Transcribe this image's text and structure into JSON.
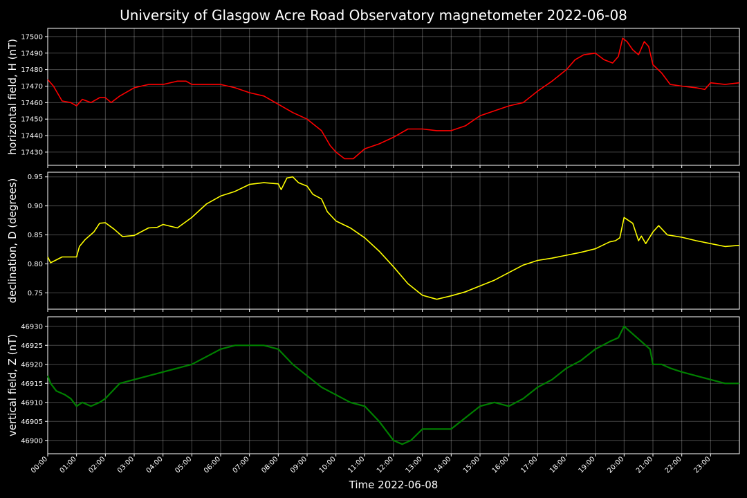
{
  "figure": {
    "title": "University of Glasgow Acre Road Observatory magnetometer 2022-06-08",
    "xlabel": "Time 2022-06-08",
    "x_tick_labels": [
      "00:00",
      "01:00",
      "02:00",
      "03:00",
      "04:00",
      "05:00",
      "06:00",
      "07:00",
      "08:00",
      "09:00",
      "10:00",
      "11:00",
      "12:00",
      "13:00",
      "14:00",
      "15:00",
      "16:00",
      "17:00",
      "18:00",
      "19:00",
      "20:00",
      "21:00",
      "22:00",
      "23:00"
    ],
    "background_color": "#000000",
    "grid": true
  },
  "chart_data": [
    {
      "type": "line",
      "ylabel": "horizontal field, H (nT)",
      "color": "#ff0000",
      "xlim": [
        0,
        24
      ],
      "ylim": [
        17422,
        17505
      ],
      "y_ticks": [
        17430,
        17440,
        17450,
        17460,
        17470,
        17480,
        17490,
        17500
      ],
      "x_hours": [
        0,
        0.2,
        0.5,
        0.8,
        1.0,
        1.2,
        1.5,
        1.8,
        2.0,
        2.2,
        2.5,
        3.0,
        3.5,
        4.0,
        4.5,
        4.8,
        5.0,
        5.5,
        6.0,
        6.5,
        7.0,
        7.5,
        8.0,
        8.5,
        9.0,
        9.5,
        9.8,
        10.0,
        10.3,
        10.6,
        11.0,
        11.5,
        12.0,
        12.5,
        13.0,
        13.5,
        14.0,
        14.5,
        15.0,
        15.5,
        16.0,
        16.5,
        17.0,
        17.5,
        18.0,
        18.3,
        18.6,
        19.0,
        19.3,
        19.6,
        19.8,
        19.95,
        20.1,
        20.3,
        20.5,
        20.7,
        20.85,
        21.0,
        21.3,
        21.6,
        22.0,
        22.5,
        22.8,
        23.0,
        23.5,
        24.0
      ],
      "values": [
        17474,
        17470,
        17461,
        17460,
        17458,
        17462,
        17460,
        17463,
        17463,
        17460,
        17464,
        17469,
        17471,
        17471,
        17473,
        17473,
        17471,
        17471,
        17471,
        17469,
        17466,
        17464,
        17459,
        17454,
        17450,
        17443,
        17434,
        17430,
        17426,
        17426,
        17432,
        17435,
        17439,
        17444,
        17444,
        17443,
        17443,
        17446,
        17452,
        17455,
        17458,
        17460,
        17467,
        17473,
        17480,
        17486,
        17489,
        17490,
        17486,
        17484,
        17488,
        17499,
        17497,
        17492,
        17489,
        17497,
        17494,
        17483,
        17478,
        17471,
        17470,
        17469,
        17468,
        17472,
        17471,
        17472
      ]
    },
    {
      "type": "line",
      "ylabel": "declination, D (degrees)",
      "color": "#ffff00",
      "xlim": [
        0,
        24
      ],
      "ylim": [
        0.722,
        0.958
      ],
      "y_ticks": [
        0.75,
        0.8,
        0.85,
        0.9,
        0.95
      ],
      "x_hours": [
        0,
        0.1,
        0.5,
        1.0,
        1.1,
        1.3,
        1.6,
        1.8,
        2.0,
        2.3,
        2.6,
        3.0,
        3.5,
        3.8,
        4.0,
        4.5,
        5.0,
        5.5,
        6.0,
        6.5,
        7.0,
        7.5,
        8.0,
        8.1,
        8.3,
        8.5,
        8.7,
        9.0,
        9.2,
        9.5,
        9.7,
        10.0,
        10.5,
        11.0,
        11.5,
        12.0,
        12.5,
        13.0,
        13.5,
        14.0,
        14.5,
        15.0,
        15.5,
        16.0,
        16.5,
        17.0,
        17.5,
        18.0,
        18.5,
        19.0,
        19.5,
        19.7,
        19.85,
        20.0,
        20.3,
        20.5,
        20.6,
        20.75,
        21.0,
        21.2,
        21.5,
        22.0,
        22.5,
        23.0,
        23.5,
        24.0
      ],
      "values": [
        0.812,
        0.802,
        0.812,
        0.812,
        0.83,
        0.842,
        0.855,
        0.87,
        0.871,
        0.86,
        0.847,
        0.849,
        0.862,
        0.863,
        0.868,
        0.862,
        0.88,
        0.903,
        0.917,
        0.925,
        0.937,
        0.94,
        0.938,
        0.928,
        0.948,
        0.95,
        0.94,
        0.934,
        0.92,
        0.912,
        0.89,
        0.874,
        0.862,
        0.845,
        0.822,
        0.795,
        0.766,
        0.746,
        0.739,
        0.745,
        0.752,
        0.762,
        0.772,
        0.785,
        0.798,
        0.806,
        0.81,
        0.815,
        0.82,
        0.826,
        0.838,
        0.84,
        0.845,
        0.88,
        0.87,
        0.84,
        0.848,
        0.835,
        0.855,
        0.866,
        0.85,
        0.846,
        0.84,
        0.835,
        0.83,
        0.832
      ]
    },
    {
      "type": "line",
      "ylabel": "vertical field, Z (nT)",
      "color": "#008000",
      "xlim": [
        0,
        24
      ],
      "ylim": [
        46896.5,
        46932.5
      ],
      "y_ticks": [
        46900,
        46905,
        46910,
        46915,
        46920,
        46925,
        46930
      ],
      "x_hours": [
        0,
        0.1,
        0.3,
        0.6,
        0.8,
        1.0,
        1.2,
        1.5,
        1.8,
        2.0,
        2.5,
        3.0,
        3.5,
        4.0,
        4.5,
        5.0,
        5.5,
        6.0,
        6.5,
        7.0,
        7.5,
        8.0,
        8.5,
        9.0,
        9.5,
        10.0,
        10.5,
        11.0,
        11.5,
        12.0,
        12.3,
        12.6,
        13.0,
        13.5,
        14.0,
        14.5,
        15.0,
        15.5,
        16.0,
        16.5,
        17.0,
        17.5,
        18.0,
        18.5,
        19.0,
        19.5,
        19.8,
        20.0,
        20.3,
        20.6,
        20.9,
        21.0,
        21.3,
        21.6,
        22.0,
        22.5,
        23.0,
        23.5,
        24.0
      ],
      "values": [
        46917,
        46915,
        46913,
        46912,
        46911,
        46909,
        46910,
        46909,
        46910,
        46911,
        46915,
        46916,
        46917,
        46918,
        46919,
        46920,
        46922,
        46924,
        46925,
        46925,
        46925,
        46924,
        46920,
        46917,
        46914,
        46912,
        46910,
        46909,
        46905,
        46900,
        46899,
        46900,
        46903,
        46903,
        46903,
        46906,
        46909,
        46910,
        46909,
        46911,
        46914,
        46916,
        46919,
        46921,
        46924,
        46926,
        46927,
        46930,
        46928,
        46926,
        46924,
        46920,
        46920,
        46919,
        46918,
        46917,
        46916,
        46915,
        46915
      ]
    }
  ]
}
